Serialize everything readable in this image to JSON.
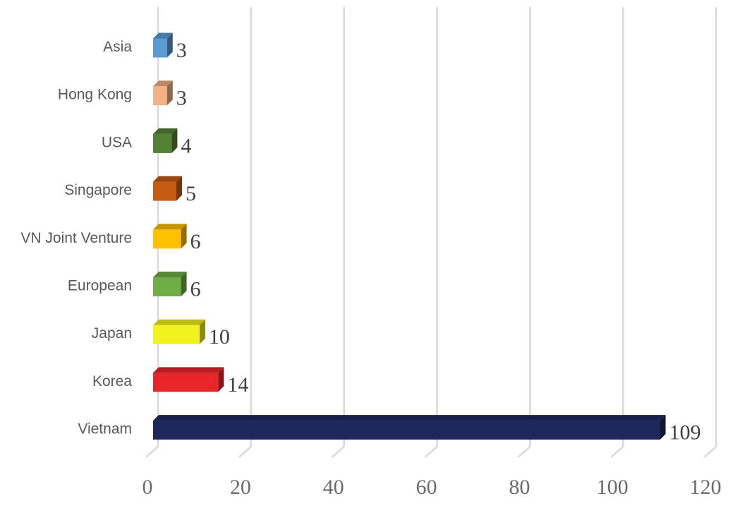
{
  "chart_data": {
    "type": "bar",
    "orientation": "horizontal",
    "style": "3d",
    "title": "",
    "xlabel": "",
    "ylabel": "",
    "categories": [
      "Asia",
      "Hong Kong",
      "USA",
      "Singapore",
      "VN Joint Venture",
      "European",
      "Japan",
      "Korea",
      "Vietnam"
    ],
    "values": [
      3,
      3,
      4,
      5,
      6,
      6,
      10,
      14,
      109
    ],
    "value_labels": [
      "3",
      "3",
      "4",
      "5",
      "6",
      "6",
      "10",
      "14",
      "109"
    ],
    "colors": [
      "#5b9bd5",
      "#f4b183",
      "#548235",
      "#c55a11",
      "#ffc000",
      "#70ad47",
      "#f2f21e",
      "#e8262a",
      "#1f285c"
    ],
    "xlim": [
      0,
      120
    ],
    "xticks": [
      0,
      20,
      40,
      60,
      80,
      100,
      120
    ],
    "xtick_labels": [
      "0",
      "20",
      "40",
      "60",
      "80",
      "100",
      "120"
    ],
    "grid": "vertical",
    "legend": "none"
  }
}
